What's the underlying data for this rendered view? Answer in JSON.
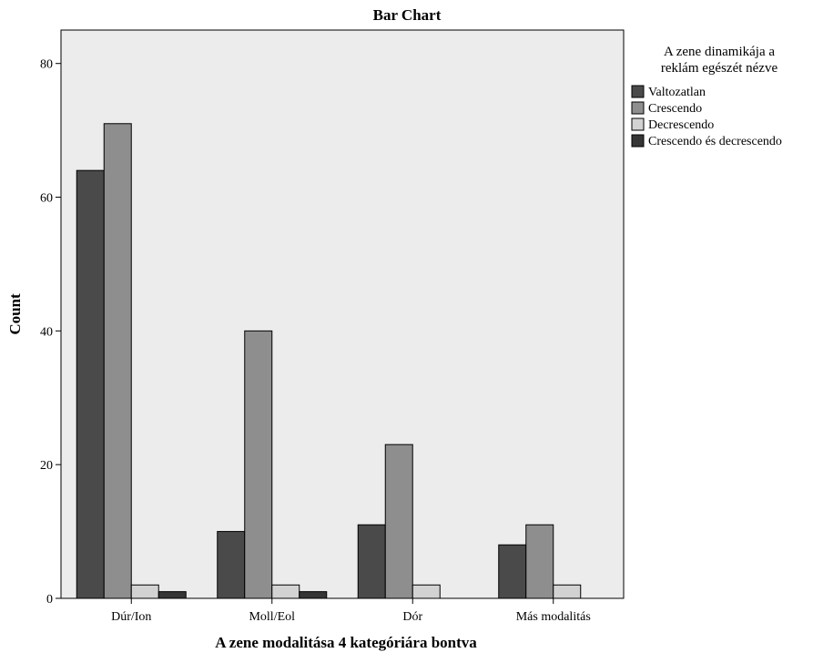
{
  "chart_data": {
    "type": "bar",
    "title": "Bar Chart",
    "xlabel": "A zene modalitása 4 kategóriára bontva",
    "ylabel": "Count",
    "ylim": [
      0,
      85
    ],
    "yticks": [
      0,
      20,
      40,
      60,
      80
    ],
    "grid": false,
    "legend_position": "right",
    "legend_title": [
      "A zene dinamikája a",
      "reklám egészét nézve"
    ],
    "categories": [
      "Dúr/Ion",
      "Moll/Eol",
      "Dór",
      "Más modalitás"
    ],
    "series": [
      {
        "name": "Valtozatlan",
        "color": "#4a4a4a",
        "values": [
          64,
          10,
          11,
          8
        ]
      },
      {
        "name": "Crescendo",
        "color": "#8e8e8e",
        "values": [
          71,
          40,
          23,
          11
        ]
      },
      {
        "name": "Decrescendo",
        "color": "#d2d2d2",
        "values": [
          2,
          2,
          2,
          2
        ]
      },
      {
        "name": "Crescendo és decrescendo",
        "color": "#353535",
        "values": [
          1,
          1,
          0,
          0
        ]
      }
    ]
  },
  "colors": {
    "plot_background": "#ececec",
    "axis": "#000000"
  }
}
